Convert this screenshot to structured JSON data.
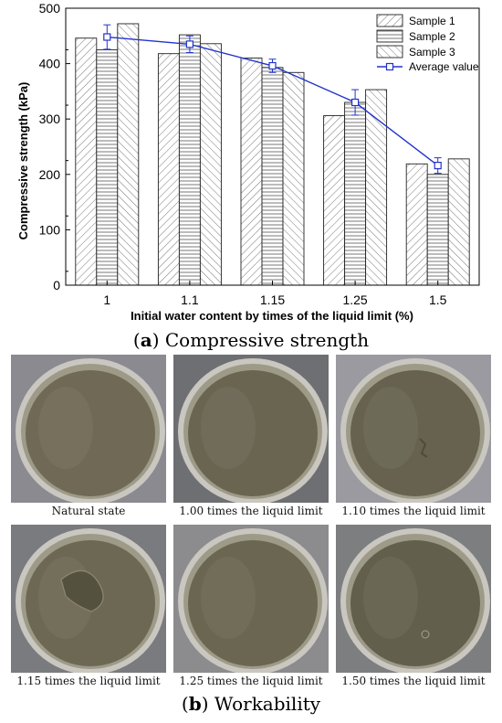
{
  "chart_data": {
    "type": "bar",
    "categories": [
      "1",
      "1.1",
      "1.15",
      "1.25",
      "1.5"
    ],
    "series": [
      {
        "name": "Sample 1",
        "values": [
          446,
          418,
          410,
          306,
          219
        ]
      },
      {
        "name": "Sample 2",
        "values": [
          425,
          452,
          393,
          330,
          200
        ]
      },
      {
        "name": "Sample 3",
        "values": [
          472,
          436,
          384,
          353,
          228
        ]
      }
    ],
    "line_series": {
      "name": "Average value",
      "values": [
        448,
        435,
        396,
        330,
        216
      ],
      "errors": [
        22,
        15,
        12,
        23,
        14
      ],
      "color": "#2233cc"
    },
    "xlabel": "Initial water content by times of the liquid limit (%)",
    "ylabel": "Compressive strength (kPa)",
    "ylim": [
      0,
      500
    ],
    "yticks": [
      0,
      100,
      200,
      300,
      400,
      500
    ],
    "legend_position": "top-right"
  },
  "captions": {
    "a_letter": "a",
    "a_text": " Compressive strength",
    "b_letter": "b",
    "b_text": " Workability"
  },
  "photos": [
    {
      "label": "Natural state"
    },
    {
      "label": "1.00 times the liquid limit"
    },
    {
      "label": "1.10 times the liquid limit"
    },
    {
      "label": "1.15 times the liquid limit"
    },
    {
      "label": "1.25 times the liquid limit"
    },
    {
      "label": "1.50 times the liquid limit"
    }
  ]
}
